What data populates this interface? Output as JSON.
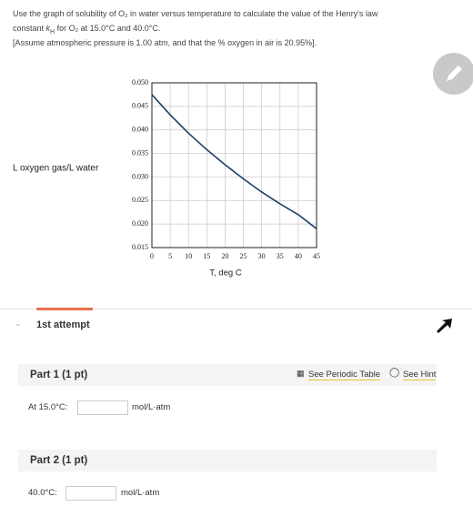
{
  "question": {
    "line1": "Use the graph of solubility of O₂ in water versus temperature to calculate the value of the Henry's law",
    "line2": [
      "constant ",
      "k",
      "H",
      " for O₂ at 15.0°C and 40.0°C."
    ],
    "line3": "[Assume atmospheric pressure is 1.00 atm, and that the % oxygen in air is 20.95%]."
  },
  "chart_data": {
    "type": "line",
    "ylabel": "L oxygen gas/L water",
    "xlabel": "T, deg C",
    "x": [
      0,
      5,
      10,
      15,
      20,
      25,
      30,
      35,
      40,
      45
    ],
    "values": [
      0.0475,
      0.0432,
      0.0393,
      0.0358,
      0.0326,
      0.0296,
      0.0268,
      0.0243,
      0.022,
      0.019
    ],
    "color": "#1f3f66",
    "xlim": [
      0,
      45
    ],
    "xticks": [
      0,
      5,
      10,
      15,
      20,
      25,
      30,
      35,
      40,
      45
    ],
    "ylim": [
      0.015,
      0.05
    ],
    "yticks": [
      {
        "value": 0.015,
        "label": "0.015"
      },
      {
        "value": 0.02,
        "label": "0.020"
      },
      0.025,
      {
        "value": 0.03,
        "label": "0.030"
      },
      0.035,
      {
        "value": 0.04,
        "label": "0.040"
      },
      0.045,
      {
        "value": 0.05,
        "label": "0.050"
      }
    ],
    "grid": true
  },
  "attempt": {
    "label": "1st attempt"
  },
  "part1": {
    "title": "Part 1 (1 pt)",
    "periodic": "See Periodic Table",
    "hint": "See Hint",
    "prompt": "At 15.0°C:",
    "unit": "mol/L·atm"
  },
  "part2": {
    "title": "Part 2 (1 pt)",
    "prompt": "40.0°C:",
    "unit": "mol/L·atm"
  }
}
